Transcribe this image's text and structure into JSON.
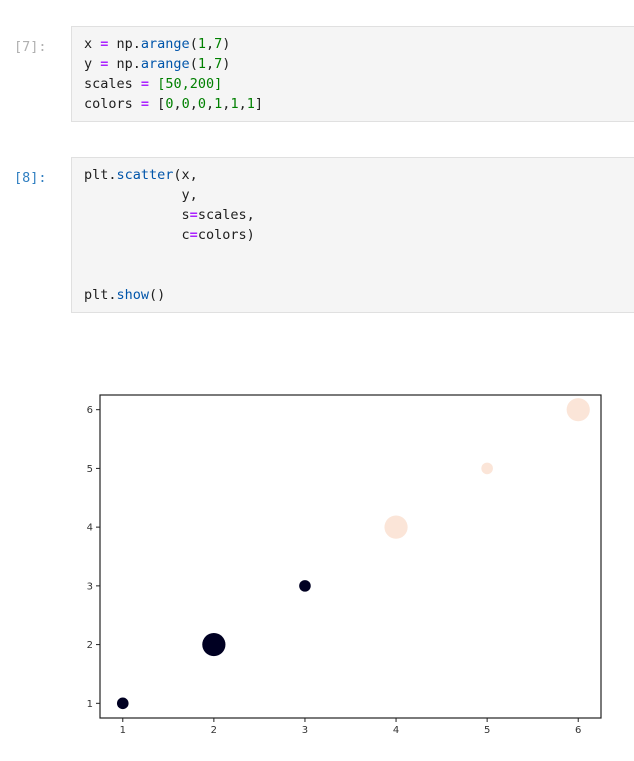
{
  "cell_7": {
    "prompt": "[7]:",
    "code": [
      [
        [
          "x ",
          ""
        ],
        [
          "=",
          "op"
        ],
        [
          " np.",
          ""
        ],
        [
          "arange",
          "fn"
        ],
        [
          "(",
          ""
        ],
        [
          "1",
          "num"
        ],
        [
          ",",
          ""
        ],
        [
          "7",
          "num"
        ],
        [
          ")",
          ""
        ]
      ],
      [
        [
          "y ",
          ""
        ],
        [
          "=",
          "op"
        ],
        [
          " np.",
          ""
        ],
        [
          "arange",
          "fn"
        ],
        [
          "(",
          ""
        ],
        [
          "1",
          "num"
        ],
        [
          ",",
          ""
        ],
        [
          "7",
          "num"
        ],
        [
          ")",
          ""
        ]
      ],
      [
        [
          "scales ",
          ""
        ],
        [
          "=",
          "op"
        ],
        [
          " ",
          ""
        ],
        [
          "[",
          "grn"
        ],
        [
          "50",
          "num"
        ],
        [
          ",",
          "grn"
        ],
        [
          "200",
          "num"
        ],
        [
          "]",
          "grn"
        ]
      ],
      [
        [
          "colors ",
          ""
        ],
        [
          "=",
          "op"
        ],
        [
          " [",
          ""
        ],
        [
          "0",
          "num"
        ],
        [
          ",",
          ""
        ],
        [
          "0",
          "num"
        ],
        [
          ",",
          ""
        ],
        [
          "0",
          "num"
        ],
        [
          ",",
          ""
        ],
        [
          "1",
          "num"
        ],
        [
          ",",
          ""
        ],
        [
          "1",
          "num"
        ],
        [
          ",",
          ""
        ],
        [
          "1",
          "num"
        ],
        [
          "]",
          ""
        ]
      ]
    ]
  },
  "cell_8": {
    "prompt": "[8]:",
    "code": [
      [
        [
          "plt.",
          ""
        ],
        [
          "scatter",
          "fn"
        ],
        [
          "(x,",
          ""
        ]
      ],
      [
        [
          "            y,",
          ""
        ]
      ],
      [
        [
          "            s",
          ""
        ],
        [
          "=",
          "op"
        ],
        [
          "scales,",
          ""
        ]
      ],
      [
        [
          "            c",
          ""
        ],
        [
          "=",
          "op"
        ],
        [
          "colors)",
          ""
        ]
      ],
      [
        [
          "",
          ""
        ]
      ],
      [
        [
          "",
          ""
        ]
      ],
      [
        [
          "plt.",
          ""
        ],
        [
          "show",
          "fn"
        ],
        [
          "()",
          ""
        ]
      ]
    ]
  },
  "chart_data": {
    "type": "scatter",
    "x": [
      1,
      2,
      3,
      4,
      5,
      6
    ],
    "y": [
      1,
      2,
      3,
      4,
      5,
      6
    ],
    "sizes": [
      50,
      200,
      50,
      200,
      50,
      200
    ],
    "colors": [
      0,
      0,
      0,
      1,
      1,
      1
    ],
    "color_map": {
      "0": "#000022",
      "1": "#fbe5d8"
    },
    "xticks": [
      "1",
      "2",
      "3",
      "4",
      "5",
      "6"
    ],
    "yticks": [
      "1",
      "2",
      "3",
      "4",
      "5",
      "6"
    ],
    "xlim": [
      0.75,
      6.25
    ],
    "ylim": [
      0.75,
      6.25
    ],
    "title": "",
    "xlabel": "",
    "ylabel": ""
  }
}
